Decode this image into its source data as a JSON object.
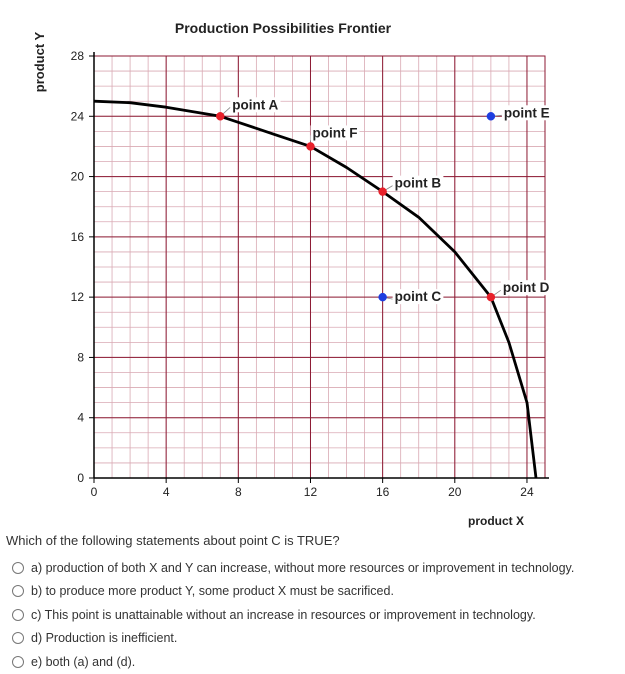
{
  "chart_data": {
    "type": "line",
    "title": "Production Possibilities Frontier",
    "xlabel": "product X",
    "ylabel": "product Y",
    "xlim": [
      0,
      25
    ],
    "ylim": [
      0,
      28
    ],
    "x_ticks": [
      0,
      4,
      8,
      12,
      16,
      20,
      24
    ],
    "y_ticks": [
      0,
      4,
      8,
      12,
      16,
      20,
      24,
      28
    ],
    "grid": true,
    "series": [
      {
        "values": [
          [
            0,
            25
          ],
          [
            2,
            24.9
          ],
          [
            4,
            24.6
          ],
          [
            6,
            24.2
          ],
          [
            7,
            24
          ],
          [
            8,
            23.6
          ],
          [
            10,
            22.8
          ],
          [
            12,
            22
          ],
          [
            14,
            20.6
          ],
          [
            16,
            19
          ],
          [
            18,
            17.3
          ],
          [
            20,
            15
          ],
          [
            22,
            12
          ],
          [
            23,
            9
          ],
          [
            24,
            5
          ],
          [
            24.5,
            0
          ]
        ]
      }
    ],
    "points": [
      {
        "label": "point A",
        "x": 7,
        "y": 24,
        "color": "#e8202a"
      },
      {
        "label": "point F",
        "x": 12,
        "y": 22,
        "color": "#e8202a"
      },
      {
        "label": "point B",
        "x": 16,
        "y": 19,
        "color": "#e8202a"
      },
      {
        "label": "point C",
        "x": 16,
        "y": 12,
        "color": "#1f3ee0"
      },
      {
        "label": "point D",
        "x": 22,
        "y": 12,
        "color": "#e8202a"
      },
      {
        "label": "point E",
        "x": 22,
        "y": 24,
        "color": "#1f3ee0"
      }
    ],
    "colors": {
      "grid_minor": "#d9a9b3",
      "grid_major": "#8c1a33",
      "curve": "#000000"
    }
  },
  "question": {
    "text": "Which of the following statements about point C is TRUE?",
    "options": [
      "a) production of both X and Y can increase, without more resources or improvement in technology.",
      "b) to produce more product Y, some product X must be sacrificed.",
      "c) This point is unattainable without an increase in resources or improvement in technology.",
      "d) Production is inefficient.",
      "e) both (a) and (d)."
    ]
  }
}
